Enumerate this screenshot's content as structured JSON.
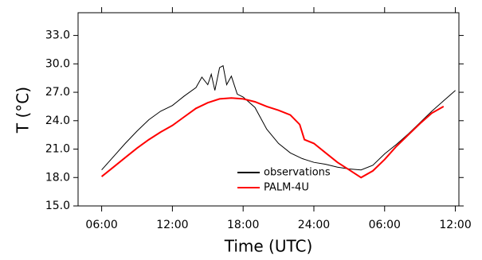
{
  "chart_data": {
    "type": "line",
    "xlabel": "Time (UTC)",
    "ylabel": "T (°C)",
    "xlim": [
      4,
      36.3
    ],
    "ylim": [
      15,
      35.4
    ],
    "xticks": [
      {
        "value": 6,
        "label": "06:00"
      },
      {
        "value": 12,
        "label": "12:00"
      },
      {
        "value": 18,
        "label": "18:00"
      },
      {
        "value": 24,
        "label": "24:00"
      },
      {
        "value": 30,
        "label": "06:00"
      },
      {
        "value": 36,
        "label": "12:00"
      }
    ],
    "yticks": [
      {
        "value": 15,
        "label": "15.0"
      },
      {
        "value": 18,
        "label": "18.0"
      },
      {
        "value": 21,
        "label": "21.0"
      },
      {
        "value": 24,
        "label": "24.0"
      },
      {
        "value": 27,
        "label": "27.0"
      },
      {
        "value": 30,
        "label": "30.0"
      },
      {
        "value": 33,
        "label": "33.0"
      }
    ],
    "legend": "lower center",
    "series": [
      {
        "name": "observations",
        "color": "#000000",
        "x": [
          6,
          7,
          8,
          9,
          10,
          11,
          12,
          13,
          14,
          14.5,
          15,
          15.3,
          15.6,
          16,
          16.3,
          16.6,
          17,
          17.5,
          18,
          19,
          20,
          21,
          22,
          23,
          24,
          25,
          26,
          27,
          28,
          29,
          30,
          31,
          32,
          33,
          34,
          35,
          36
        ],
        "values": [
          18.8,
          20.2,
          21.6,
          22.9,
          24.1,
          25.0,
          25.6,
          26.6,
          27.5,
          28.6,
          27.8,
          28.9,
          27.2,
          29.6,
          29.8,
          27.8,
          28.7,
          26.8,
          26.5,
          25.4,
          23.1,
          21.6,
          20.6,
          20.0,
          19.6,
          19.4,
          19.1,
          18.9,
          18.8,
          19.3,
          20.5,
          21.5,
          22.6,
          23.8,
          25.0,
          26.1,
          27.2
        ]
      },
      {
        "name": "PALM-4U",
        "color": "#ff0000",
        "x": [
          6,
          7,
          8,
          9,
          10,
          11,
          12,
          13,
          14,
          15,
          16,
          17,
          18,
          19,
          20,
          21,
          22,
          22.8,
          23.2,
          24,
          25,
          26,
          27,
          28,
          29,
          30,
          31,
          32,
          33,
          34,
          35
        ],
        "values": [
          18.1,
          19.1,
          20.1,
          21.1,
          22.0,
          22.8,
          23.5,
          24.4,
          25.3,
          25.9,
          26.3,
          26.4,
          26.3,
          26.0,
          25.5,
          25.1,
          24.6,
          23.6,
          22.0,
          21.6,
          20.6,
          19.6,
          18.8,
          18.0,
          18.7,
          19.9,
          21.3,
          22.5,
          23.7,
          24.8,
          25.5
        ]
      }
    ]
  }
}
